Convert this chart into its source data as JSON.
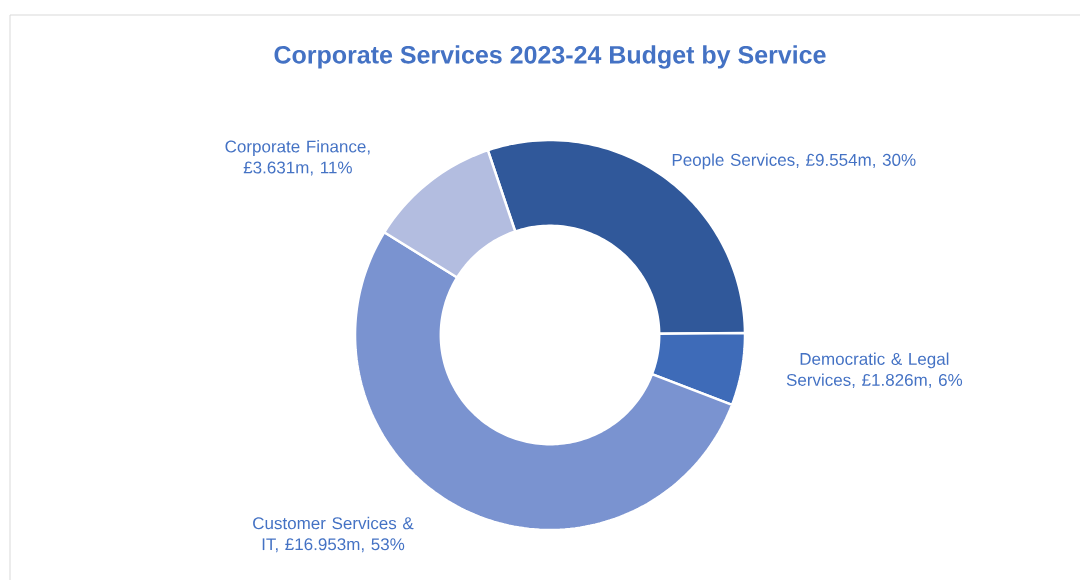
{
  "chart_data": {
    "type": "donut",
    "title": "Corporate Services 2023-24 Budget by Service",
    "categories": [
      "People Services, £9.554m, 30%",
      "Democratic & Legal Services, £1.826m, 6%",
      "Customer Services & IT, £16.953m, 53%",
      "Corporate Finance, £3.631m, 11%"
    ],
    "values": [
      30,
      6,
      53,
      11
    ],
    "colors": [
      "#30589a",
      "#3e6bb8",
      "#7a93d0",
      "#b3bde0"
    ]
  }
}
